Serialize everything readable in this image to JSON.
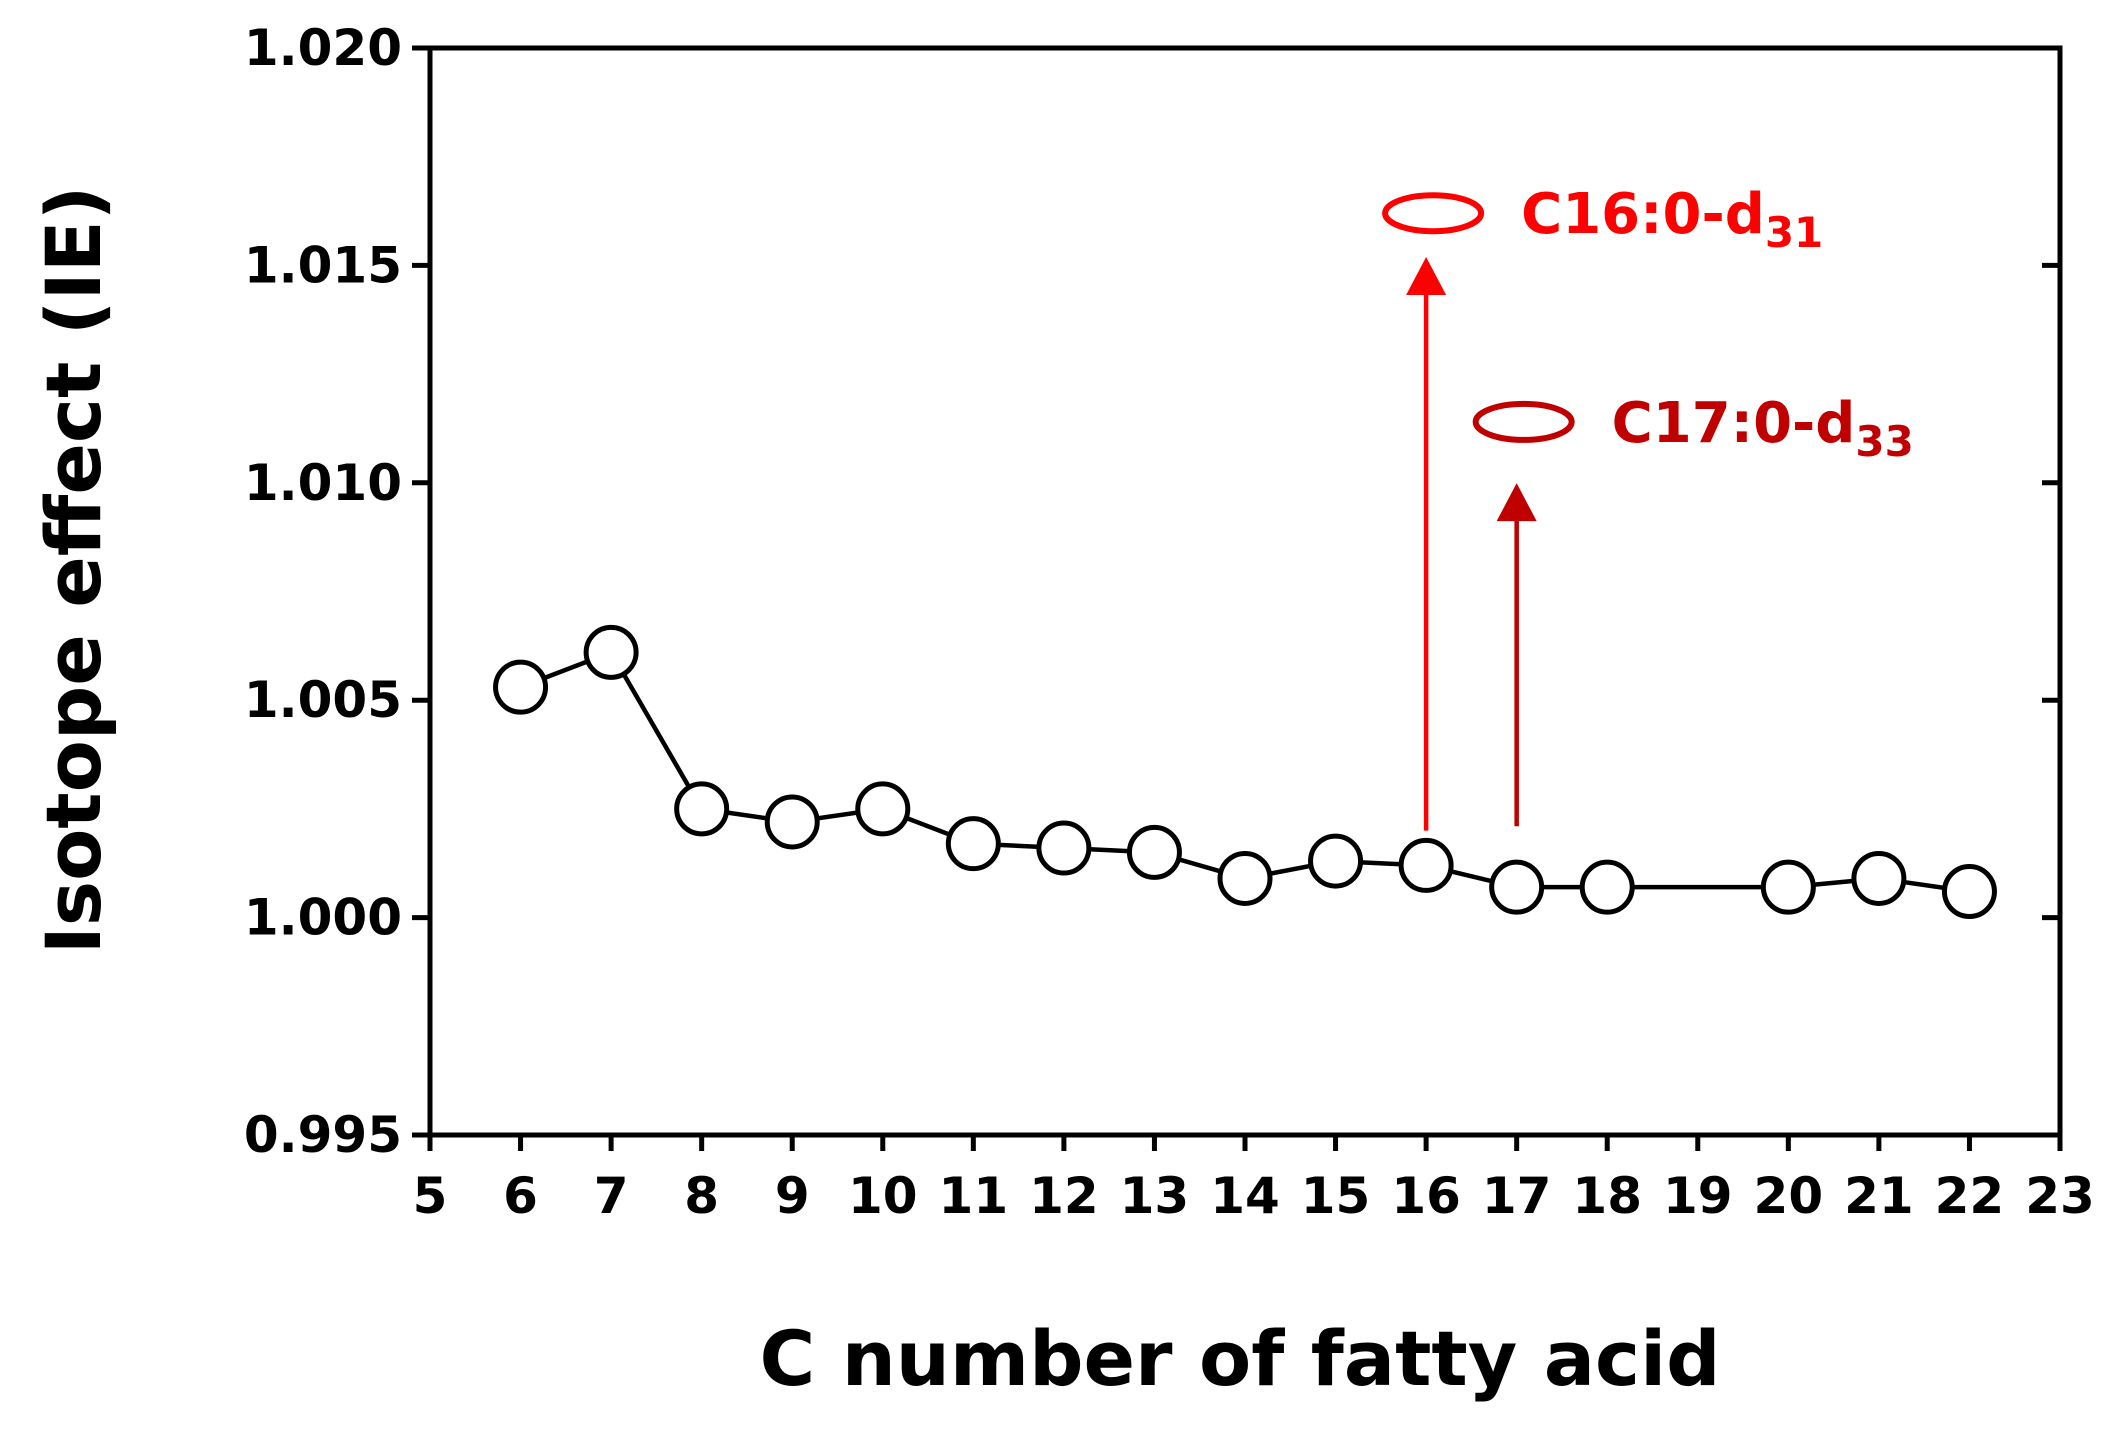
{
  "chart_data": {
    "type": "scatter",
    "title": "",
    "xlabel": "C number of fatty acid",
    "ylabel": "Isotope effect (IE)",
    "xlim": [
      5,
      23
    ],
    "ylim": [
      0.995,
      1.02
    ],
    "x_ticks": [
      "5",
      "6",
      "7",
      "8",
      "9",
      "10",
      "11",
      "12",
      "13",
      "14",
      "15",
      "16",
      "17",
      "18",
      "19",
      "20",
      "21",
      "22",
      "23"
    ],
    "y_ticks": [
      "0.995",
      "1.000",
      "1.005",
      "1.010",
      "1.015",
      "1.020"
    ],
    "grid": false,
    "legend": "none",
    "series": [
      {
        "x": [
          6,
          7,
          8,
          9,
          10,
          11,
          12,
          13,
          14,
          15,
          16,
          17,
          18,
          20,
          21,
          22
        ],
        "y": [
          1.0053,
          1.0061,
          1.0025,
          1.0022,
          1.0025,
          1.0017,
          1.0016,
          1.0015,
          1.0009,
          1.0013,
          1.0012,
          1.0007,
          1.0007,
          1.0007,
          1.0009,
          1.0006
        ],
        "color": "#000000",
        "marker": "open-circle",
        "line": true
      }
    ],
    "annotations": [
      {
        "label": "C16:0-d",
        "subscript": "31",
        "x": 16,
        "y": 1.0162,
        "arrow_from_y": 1.002,
        "arrow_to_y": 1.0151,
        "color": "#ff0000",
        "marker": "open-ellipse"
      },
      {
        "label": "C17:0-d",
        "subscript": "33",
        "x": 17,
        "y": 1.0114,
        "arrow_from_y": 1.0021,
        "arrow_to_y": 1.0099,
        "color": "#c00000",
        "marker": "open-ellipse"
      }
    ]
  }
}
